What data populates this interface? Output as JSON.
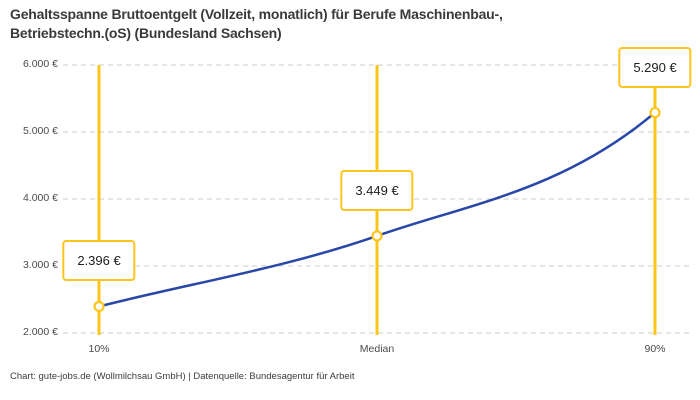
{
  "chart_data": {
    "type": "line",
    "title": "Gehaltsspanne Bruttoentgelt (Vollzeit, monatlich) für Berufe Maschinenbau-, Betriebstechn.(oS) (Bundesland Sachsen)",
    "title_lines": [
      "Gehaltsspanne Bruttoentgelt (Vollzeit, monatlich) für Berufe Maschinenbau-,",
      "Betriebstechn.(oS) (Bundesland Sachsen)"
    ],
    "categories": [
      "10%",
      "Median",
      "90%"
    ],
    "values": [
      2396,
      3449,
      5290
    ],
    "value_labels": [
      "2.396 €",
      "3.449 €",
      "5.290 €"
    ],
    "y_tick_values": [
      2000,
      3000,
      4000,
      5000,
      6000
    ],
    "y_tick_labels": [
      "2.000 €",
      "3.000 €",
      "4.000 €",
      "5.000 €",
      "6.000 €"
    ],
    "ylim": [
      2000,
      6000
    ],
    "grid": "horizontal-dashed",
    "legend": "none",
    "colors": {
      "series_line": "#2847a8",
      "percentile_line": "#fbc51d",
      "marker_ring": "#fbc51d",
      "marker_fill": "#ffffff",
      "gridline": "#cbcbcb",
      "title_text": "#3a3a3a",
      "axis_text": "#4b4b4b",
      "background": "#ffffff"
    }
  },
  "footer": {
    "credit": "Chart: gute-jobs.de (Wollmilchsau GmbH) | Datenquelle: Bundesagentur für Arbeit"
  }
}
